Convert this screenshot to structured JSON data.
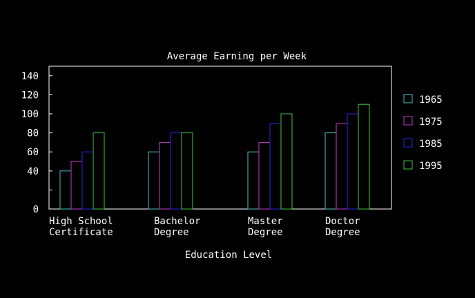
{
  "chart_data": {
    "type": "bar",
    "title": "Average Earning per Week",
    "xlabel": "Education Level",
    "ylabel": "",
    "ylim": [
      0,
      150
    ],
    "yticks": [
      0,
      20,
      40,
      60,
      80,
      100,
      120,
      140
    ],
    "yticks_labeled": [
      "0",
      "40",
      "60",
      "80",
      "100",
      "120",
      "140"
    ],
    "categories": [
      [
        "High School",
        "Certificate"
      ],
      [
        "Bachelor",
        "Degree"
      ],
      [
        "Master",
        "Degree"
      ],
      [
        "Doctor",
        "Degree"
      ]
    ],
    "series": [
      {
        "name": "1965",
        "color": "#4ec3c3",
        "values": [
          40,
          60,
          60,
          80
        ]
      },
      {
        "name": "1975",
        "color": "#c83cc8",
        "values": [
          50,
          70,
          70,
          90
        ]
      },
      {
        "name": "1985",
        "color": "#2828e6",
        "values": [
          60,
          80,
          90,
          100
        ]
      },
      {
        "name": "1995",
        "color": "#3cc83c",
        "values": [
          80,
          80,
          100,
          110
        ]
      }
    ],
    "legend_position": "right",
    "grid": false
  },
  "colors": {
    "background": "#000000",
    "axis": "#ffffff",
    "text": "#ffffff"
  }
}
